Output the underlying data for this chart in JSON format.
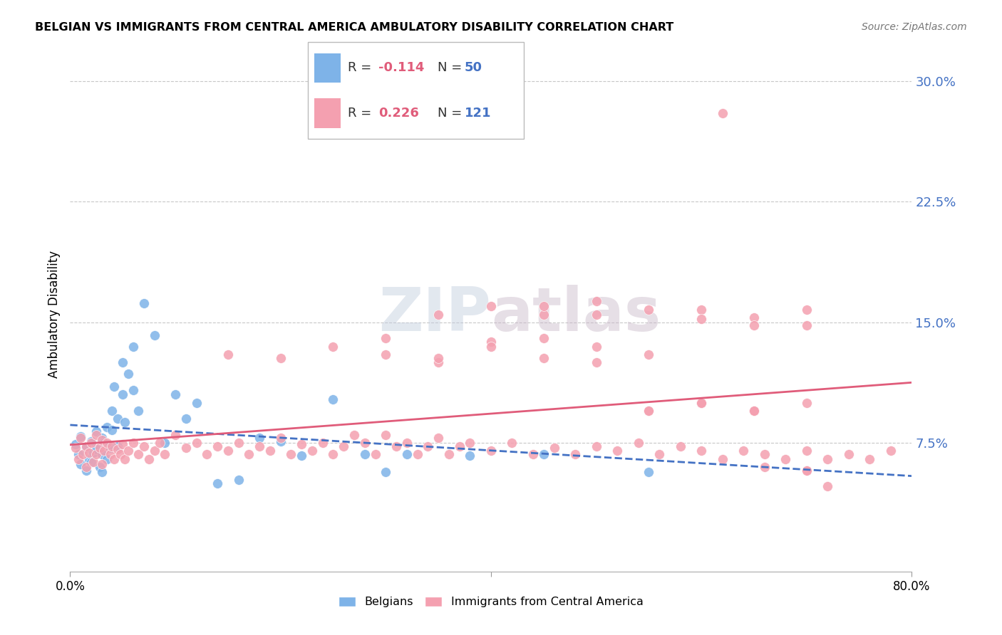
{
  "title": "BELGIAN VS IMMIGRANTS FROM CENTRAL AMERICA AMBULATORY DISABILITY CORRELATION CHART",
  "source": "Source: ZipAtlas.com",
  "ylabel": "Ambulatory Disability",
  "yticks": [
    0.075,
    0.15,
    0.225,
    0.3
  ],
  "ytick_labels": [
    "7.5%",
    "15.0%",
    "22.5%",
    "30.0%"
  ],
  "xlim": [
    0.0,
    0.8
  ],
  "ylim": [
    -0.005,
    0.315
  ],
  "belgian_R": -0.114,
  "belgian_N": 50,
  "immigrant_R": 0.226,
  "immigrant_N": 121,
  "belgian_color": "#7EB3E8",
  "immigrant_color": "#F4A0B0",
  "belgian_line_color": "#4472C4",
  "immigrant_line_color": "#E05C7A",
  "belgian_x": [
    0.005,
    0.008,
    0.01,
    0.01,
    0.015,
    0.015,
    0.018,
    0.02,
    0.02,
    0.022,
    0.025,
    0.025,
    0.028,
    0.03,
    0.03,
    0.03,
    0.032,
    0.035,
    0.035,
    0.038,
    0.04,
    0.04,
    0.042,
    0.045,
    0.045,
    0.05,
    0.05,
    0.052,
    0.055,
    0.06,
    0.06,
    0.065,
    0.07,
    0.08,
    0.09,
    0.1,
    0.11,
    0.12,
    0.14,
    0.16,
    0.18,
    0.2,
    0.22,
    0.25,
    0.28,
    0.3,
    0.32,
    0.38,
    0.45,
    0.55
  ],
  "belgian_y": [
    0.074,
    0.068,
    0.079,
    0.062,
    0.072,
    0.058,
    0.065,
    0.076,
    0.063,
    0.069,
    0.082,
    0.071,
    0.06,
    0.078,
    0.068,
    0.057,
    0.075,
    0.085,
    0.065,
    0.072,
    0.095,
    0.083,
    0.11,
    0.09,
    0.073,
    0.125,
    0.105,
    0.088,
    0.118,
    0.135,
    0.108,
    0.095,
    0.162,
    0.142,
    0.075,
    0.105,
    0.09,
    0.1,
    0.05,
    0.052,
    0.078,
    0.076,
    0.067,
    0.102,
    0.068,
    0.057,
    0.068,
    0.067,
    0.068,
    0.057
  ],
  "immigrant_x": [
    0.005,
    0.008,
    0.01,
    0.012,
    0.015,
    0.015,
    0.018,
    0.02,
    0.022,
    0.025,
    0.025,
    0.028,
    0.03,
    0.03,
    0.032,
    0.035,
    0.038,
    0.04,
    0.042,
    0.045,
    0.048,
    0.05,
    0.052,
    0.055,
    0.06,
    0.065,
    0.07,
    0.075,
    0.08,
    0.085,
    0.09,
    0.1,
    0.11,
    0.12,
    0.13,
    0.14,
    0.15,
    0.16,
    0.17,
    0.18,
    0.19,
    0.2,
    0.21,
    0.22,
    0.23,
    0.24,
    0.25,
    0.26,
    0.27,
    0.28,
    0.29,
    0.3,
    0.31,
    0.32,
    0.33,
    0.34,
    0.35,
    0.36,
    0.37,
    0.38,
    0.4,
    0.42,
    0.44,
    0.46,
    0.48,
    0.5,
    0.52,
    0.54,
    0.56,
    0.58,
    0.6,
    0.62,
    0.64,
    0.66,
    0.68,
    0.7,
    0.72,
    0.74,
    0.76,
    0.78,
    0.15,
    0.2,
    0.25,
    0.3,
    0.35,
    0.4,
    0.45,
    0.5,
    0.55,
    0.6,
    0.65,
    0.7,
    0.35,
    0.4,
    0.45,
    0.5,
    0.55,
    0.6,
    0.65,
    0.7,
    0.3,
    0.35,
    0.4,
    0.45,
    0.5,
    0.55,
    0.6,
    0.65,
    0.7,
    0.45,
    0.5,
    0.55,
    0.6,
    0.65,
    0.7,
    0.6,
    0.65,
    0.7,
    0.62,
    0.66,
    0.72
  ],
  "immigrant_y": [
    0.072,
    0.065,
    0.078,
    0.068,
    0.073,
    0.06,
    0.069,
    0.075,
    0.063,
    0.08,
    0.068,
    0.072,
    0.077,
    0.062,
    0.07,
    0.075,
    0.068,
    0.073,
    0.065,
    0.071,
    0.068,
    0.074,
    0.065,
    0.07,
    0.075,
    0.068,
    0.073,
    0.065,
    0.07,
    0.075,
    0.068,
    0.08,
    0.072,
    0.075,
    0.068,
    0.073,
    0.07,
    0.075,
    0.068,
    0.073,
    0.07,
    0.078,
    0.068,
    0.074,
    0.07,
    0.075,
    0.068,
    0.073,
    0.08,
    0.075,
    0.068,
    0.08,
    0.073,
    0.075,
    0.068,
    0.073,
    0.078,
    0.068,
    0.073,
    0.075,
    0.07,
    0.075,
    0.068,
    0.072,
    0.068,
    0.073,
    0.07,
    0.075,
    0.068,
    0.073,
    0.07,
    0.065,
    0.07,
    0.068,
    0.065,
    0.07,
    0.065,
    0.068,
    0.065,
    0.07,
    0.13,
    0.128,
    0.135,
    0.14,
    0.125,
    0.138,
    0.128,
    0.135,
    0.13,
    0.158,
    0.153,
    0.148,
    0.155,
    0.16,
    0.155,
    0.163,
    0.158,
    0.152,
    0.148,
    0.158,
    0.13,
    0.128,
    0.135,
    0.14,
    0.125,
    0.095,
    0.1,
    0.095,
    0.1,
    0.16,
    0.155,
    0.095,
    0.1,
    0.095,
    0.058,
    0.1,
    0.095,
    0.058,
    0.28,
    0.06,
    0.048
  ]
}
